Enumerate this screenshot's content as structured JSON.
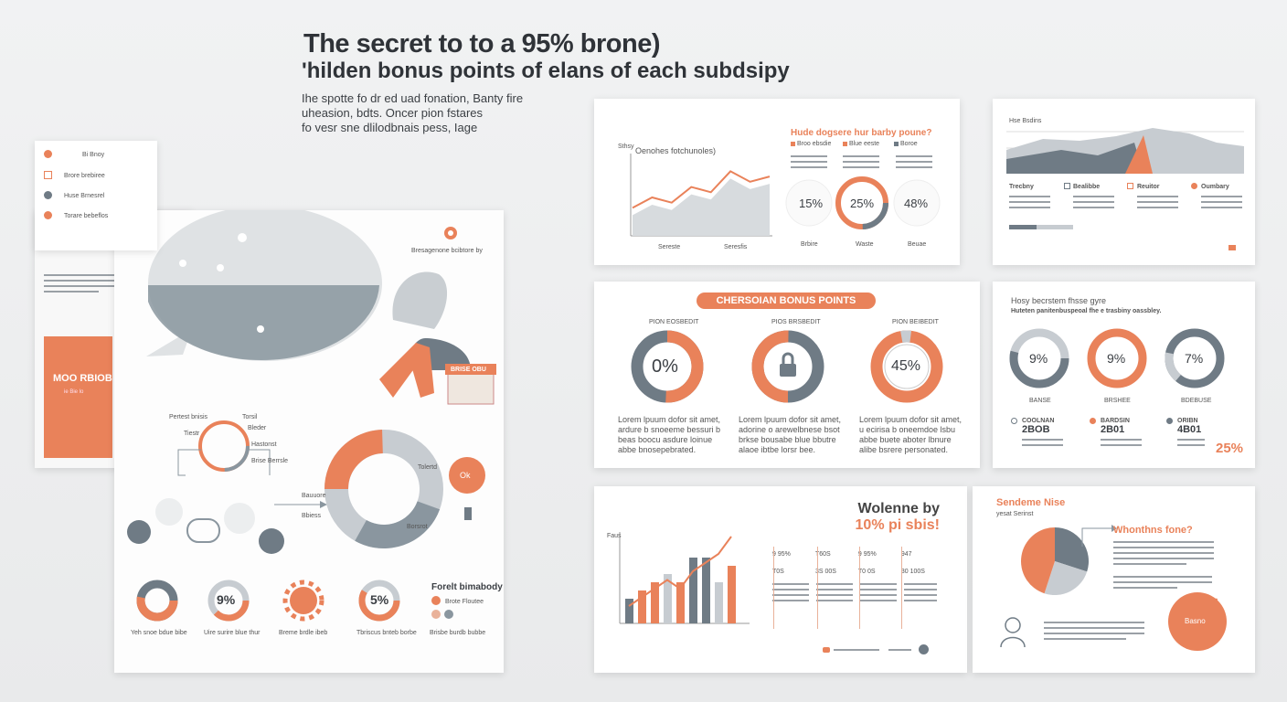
{
  "header": {
    "title_line1": "The secret to to a 95% brone)",
    "title_line2": "'hilden bonus points of elans of each subdsipy",
    "intro_lines": [
      "Ihe spotte fo dr ed uad fonation, Banty fire",
      "uheasion, bdts. Oncer pion fstares",
      "fo vesr sne dlilodbnais pess, Iage"
    ]
  },
  "legend_card": {
    "items": [
      "Bi Bnoy",
      "Brore brebiree",
      "Huse Brnesrel",
      "Torare bebeflos"
    ]
  },
  "infographic_left": {
    "pin_label": "Bresagenone bcibtore by",
    "orange_box_label": "MOO RBIOB",
    "orange_box_sub": "ie Bie lo",
    "shop_sign": "BRISE OBU",
    "donut_badge": "Ok",
    "ring_values": [
      "9%",
      "5%"
    ],
    "flow_labels": [
      "Pertest bnisis",
      "Torsil",
      "Tiestr",
      "Bleder",
      "Hastonst",
      "Brise Berrsle"
    ],
    "donut_labels": [
      "Tolertd",
      "Bauuore",
      "Bbiess",
      "Borsrot"
    ],
    "legend_title": "Forelt bimabody",
    "legend_items": [
      "Brote Floutee",
      ""
    ],
    "captions": [
      "Yeh snoe bdue bibe",
      "Uire surire blue thur",
      "Breme brdle ibeb",
      "Tbriscus bnteb borbe",
      "Brisbe burdb bubbe"
    ]
  },
  "card_line": {
    "title": "Oenohes fotchunoles)",
    "y_label": "Sthsy",
    "x_labels": [
      "Sereste",
      "Seresfis"
    ],
    "y_values": [
      5,
      7,
      6,
      9,
      8,
      12,
      10,
      11
    ],
    "question": "Hude dogsere hur barby poune?",
    "legend": [
      "Broo ebsdie",
      "Blue eeste",
      "Boroe"
    ],
    "circles": [
      {
        "label": "15%",
        "caption": "Brbire"
      },
      {
        "label": "25%",
        "caption": "Waste"
      },
      {
        "label": "48%",
        "caption": "Beuae"
      }
    ]
  },
  "card_area": {
    "title": "Hse Bsdins",
    "labels": [
      "Trecbny",
      "Bealibbe",
      "Reuitor",
      "Oumbary"
    ]
  },
  "card_bonus": {
    "banner": "CHERSOIAN BONUS POINTS",
    "items": [
      {
        "heading": "PION EOSBEDIT",
        "value": "0%",
        "text": [
          "Lorem lpuum dofor sit amet,",
          "ardure b snoeeme bessuri b",
          "beas boocu asdure loinue",
          "abbe bnosepebrated."
        ]
      },
      {
        "heading": "PIOS BRSBEDIT",
        "value": "",
        "text": [
          "Lorem lpuum dofor sit amet,",
          "adorine o arewelbnese bsot",
          "brkse bousabe blue bbutre",
          "alaoe ibtbe lorsr bee."
        ]
      },
      {
        "heading": "PION BEIBEDIT",
        "value": "45%",
        "text": [
          "Lorem lpuum dofor sit amet,",
          "u ecirisa b oneemdoe lsbu",
          "abbe buete aboter lbnure",
          "alibe bsrere personated."
        ]
      }
    ]
  },
  "card_rings": {
    "title": "Hosy becrstem fhsse gyre",
    "subtitle": "Huteten panitenbuspeoal fhe e trasbiny oassbley.",
    "rings": [
      {
        "value": "9%",
        "label": "BANSE"
      },
      {
        "value": "9%",
        "label": "BRSHEE"
      },
      {
        "value": "7%",
        "label": "BDEBUSE"
      }
    ],
    "stats": [
      {
        "name": "COOLNAN",
        "year": "2BOB"
      },
      {
        "name": "BARDSIN",
        "year": "2B01"
      },
      {
        "name": "ORIBN",
        "year": "4B01"
      }
    ],
    "corner_value": "25%"
  },
  "card_bars": {
    "title_line1": "Wolenne by",
    "title_line2": "10% pi sbis!",
    "y_label": "Faus",
    "bars": [
      3,
      4,
      5,
      6,
      5,
      8,
      8,
      5,
      7
    ],
    "line": [
      2,
      3,
      4,
      5,
      4,
      6,
      7,
      8,
      10
    ],
    "table": [
      [
        "9 95%",
        "T60S",
        "9 95%",
        "947"
      ],
      [
        "T0S",
        "3S 00S",
        "T0 0S",
        "30 100S"
      ]
    ]
  },
  "card_pie": {
    "title": "Sendeme Nise",
    "subtitle": "yesat Serinst",
    "question": "Whonthns fone?",
    "slices": [
      30,
      25,
      45
    ],
    "badge_label": "Basno"
  },
  "colors": {
    "accent": "#e9825a",
    "slate": "#6f7b85",
    "light": "#c7ccd1"
  }
}
